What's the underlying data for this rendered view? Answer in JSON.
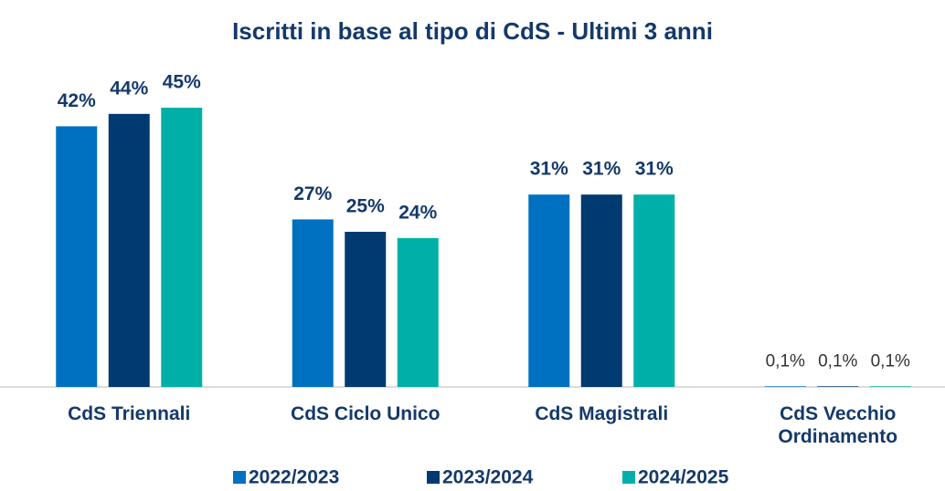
{
  "chart_data": {
    "type": "bar",
    "title": "Iscritti in base al tipo di CdS - Ultimi 3 anni",
    "categories": [
      "CdS Triennali",
      "CdS Ciclo Unico",
      "CdS Magistrali",
      "CdS Vecchio Ordinamento"
    ],
    "series": [
      {
        "name": "2022/2023",
        "color": "#0070c0",
        "values": [
          42,
          27,
          31,
          0.1
        ],
        "value_labels": [
          "42%",
          "27%",
          "31%",
          "0,1%"
        ]
      },
      {
        "name": "2023/2024",
        "color": "#003a70",
        "values": [
          44,
          25,
          31,
          0.1
        ],
        "value_labels": [
          "44%",
          "25%",
          "31%",
          "0,1%"
        ]
      },
      {
        "name": "2024/2025",
        "color": "#00b0a8",
        "values": [
          45,
          24,
          31,
          0.1
        ],
        "value_labels": [
          "45%",
          "24%",
          "31%",
          "0,1%"
        ]
      }
    ],
    "legend": "bottom"
  }
}
